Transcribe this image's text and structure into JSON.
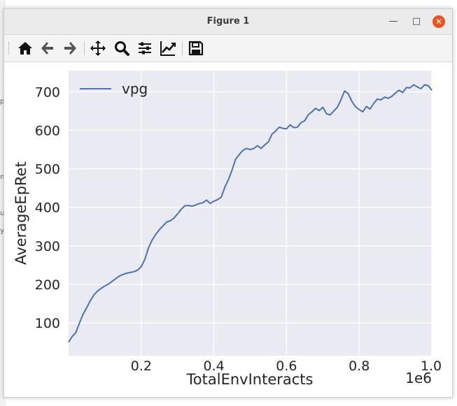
{
  "window": {
    "title": "Figure 1"
  },
  "toolbar": {
    "icons": [
      "home-icon",
      "back-arrow-icon",
      "forward-arrow-icon",
      "pan-icon",
      "zoom-icon",
      "subplots-icon",
      "customize-icon",
      "save-icon"
    ]
  },
  "colors": {
    "plot_bg": "#eaeaf2",
    "grid": "#ffffff",
    "line": "#4c72b0",
    "close_button": "#e95420"
  },
  "chart_data": {
    "type": "line",
    "xlabel": "TotalEnvInteracts",
    "ylabel": "AverageEpRet",
    "x_offset_text": "1e6",
    "xlim": [
      0.0,
      1.0
    ],
    "ylim": [
      15,
      755
    ],
    "xticks": [
      0.2,
      0.4,
      0.6,
      0.8,
      1.0
    ],
    "xtick_labels": [
      "0.2",
      "0.4",
      "0.6",
      "0.8",
      "1.0"
    ],
    "yticks": [
      100,
      200,
      300,
      400,
      500,
      600,
      700
    ],
    "ytick_labels": [
      "100",
      "200",
      "300",
      "400",
      "500",
      "600",
      "700"
    ],
    "grid": true,
    "legend": "top-left",
    "series": [
      {
        "name": "vpg",
        "color": "#4c72b0",
        "x": [
          0.0,
          0.01,
          0.02,
          0.03,
          0.04,
          0.05,
          0.06,
          0.07,
          0.08,
          0.09,
          0.1,
          0.11,
          0.12,
          0.13,
          0.14,
          0.15,
          0.16,
          0.17,
          0.18,
          0.19,
          0.2,
          0.21,
          0.22,
          0.23,
          0.24,
          0.25,
          0.26,
          0.27,
          0.28,
          0.29,
          0.3,
          0.31,
          0.32,
          0.33,
          0.34,
          0.35,
          0.36,
          0.37,
          0.38,
          0.39,
          0.4,
          0.41,
          0.42,
          0.43,
          0.44,
          0.45,
          0.46,
          0.47,
          0.48,
          0.49,
          0.5,
          0.51,
          0.52,
          0.53,
          0.54,
          0.55,
          0.56,
          0.57,
          0.58,
          0.59,
          0.6,
          0.61,
          0.62,
          0.63,
          0.64,
          0.65,
          0.66,
          0.67,
          0.68,
          0.69,
          0.7,
          0.71,
          0.72,
          0.73,
          0.74,
          0.75,
          0.76,
          0.77,
          0.78,
          0.79,
          0.8,
          0.81,
          0.82,
          0.83,
          0.84,
          0.85,
          0.86,
          0.87,
          0.88,
          0.89,
          0.9,
          0.91,
          0.92,
          0.93,
          0.94,
          0.95,
          0.96,
          0.97,
          0.98,
          0.99,
          1.0
        ],
        "y": [
          50,
          65,
          75,
          100,
          123,
          140,
          158,
          173,
          183,
          190,
          196,
          201,
          208,
          215,
          222,
          226,
          229,
          231,
          233,
          237,
          246,
          265,
          295,
          315,
          330,
          342,
          352,
          362,
          365,
          372,
          383,
          395,
          404,
          405,
          403,
          406,
          410,
          412,
          419,
          410,
          416,
          420,
          426,
          452,
          472,
          497,
          525,
          537,
          548,
          553,
          550,
          553,
          560,
          553,
          562,
          570,
          590,
          598,
          608,
          605,
          604,
          614,
          607,
          608,
          620,
          625,
          640,
          648,
          657,
          651,
          660,
          643,
          640,
          650,
          660,
          680,
          702,
          695,
          675,
          661,
          654,
          648,
          662,
          655,
          670,
          681,
          679,
          686,
          683,
          688,
          697,
          704,
          698,
          711,
          710,
          718,
          713,
          708,
          718,
          716,
          704
        ]
      }
    ]
  }
}
